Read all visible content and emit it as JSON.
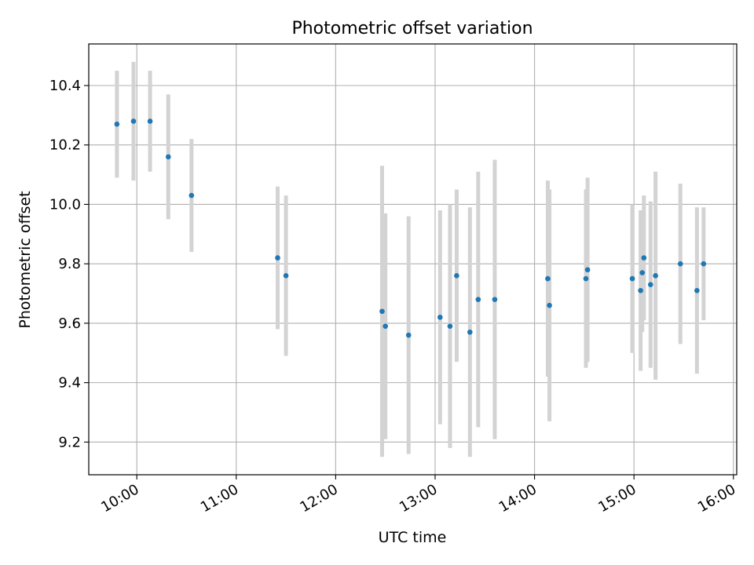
{
  "chart_data": {
    "type": "scatter",
    "title": "Photometric offset variation",
    "xlabel": "UTC time",
    "ylabel": "Photometric offset",
    "x_ticks": [
      "10:00",
      "11:00",
      "12:00",
      "13:00",
      "14:00",
      "15:00",
      "16:00"
    ],
    "y_ticks": [
      "9.2",
      "9.4",
      "9.6",
      "9.8",
      "10.0",
      "10.2",
      "10.4"
    ],
    "xlim": [
      "09:31",
      "16:02"
    ],
    "ylim": [
      9.09,
      10.54
    ],
    "grid": true,
    "colors": {
      "point": "#1f77b4",
      "errorbar": "#d3d3d3",
      "grid": "#b0b0b0"
    },
    "series": [
      {
        "x": [
          "09:48",
          "09:58",
          "10:08",
          "10:19",
          "10:33",
          "11:25",
          "11:30",
          "12:28",
          "12:30",
          "12:44",
          "13:03",
          "13:09",
          "13:13",
          "13:21",
          "13:26",
          "13:36",
          "14:08",
          "14:09",
          "14:31",
          "14:32",
          "14:59",
          "15:04",
          "15:05",
          "15:06",
          "15:10",
          "15:13",
          "15:28",
          "15:38",
          "15:42"
        ],
        "y": [
          10.27,
          10.28,
          10.28,
          10.16,
          10.03,
          9.82,
          9.76,
          9.64,
          9.59,
          9.56,
          9.62,
          9.59,
          9.76,
          9.57,
          9.68,
          9.68,
          9.75,
          9.66,
          9.75,
          9.78,
          9.75,
          9.71,
          9.77,
          9.82,
          9.73,
          9.76,
          9.8,
          9.71,
          9.8
        ],
        "error": [
          0.18,
          0.2,
          0.17,
          0.21,
          0.19,
          0.24,
          0.27,
          0.49,
          0.38,
          0.4,
          0.36,
          0.41,
          0.29,
          0.42,
          0.43,
          0.47,
          0.33,
          0.39,
          0.3,
          0.31,
          0.25,
          0.27,
          0.2,
          0.21,
          0.28,
          0.35,
          0.27,
          0.28,
          0.19
        ]
      }
    ]
  }
}
